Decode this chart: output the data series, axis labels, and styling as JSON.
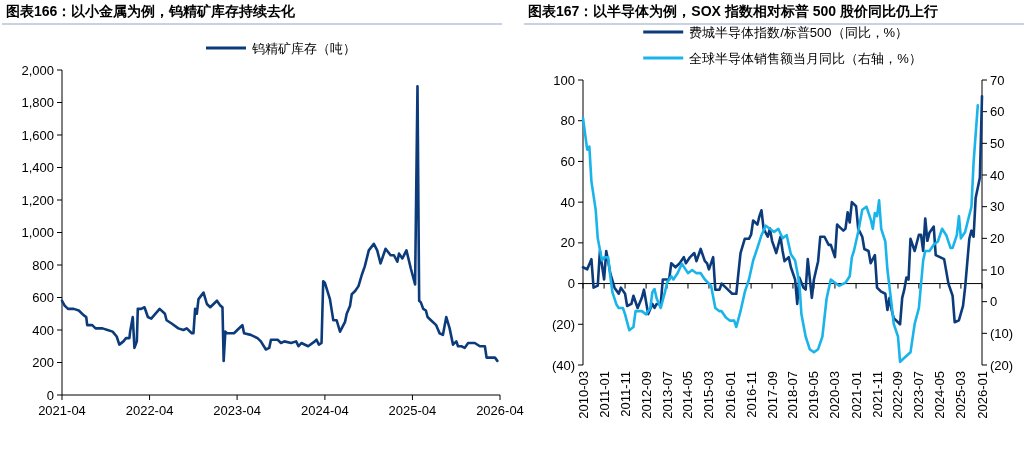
{
  "chart_data": [
    {
      "type": "line",
      "title": "图表166：以小金属为例，钨精矿库存持续去化",
      "legend": "top",
      "xlim": [
        "2021-04",
        "2026-04"
      ],
      "xticks": [
        "2021-04",
        "2022-04",
        "2023-04",
        "2024-04",
        "2025-04",
        "2026-04"
      ],
      "ylim": [
        0,
        2000
      ],
      "yticks": [
        0,
        200,
        400,
        600,
        800,
        {
          "value": 1000,
          "label": "1,000"
        },
        {
          "value": 1200,
          "label": "1,200"
        },
        {
          "value": 1400,
          "label": "1,400"
        },
        {
          "value": 1600,
          "label": "1,600"
        },
        {
          "value": 1800,
          "label": "1,800"
        },
        {
          "value": 2000,
          "label": "2,000"
        }
      ],
      "series": [
        {
          "name": "钨精矿库存（吨）",
          "color": "#0c3b7c",
          "x": [
            "2021-04-01",
            "2021-04-12",
            "2021-04-26",
            "2021-05-20",
            "2021-06-10",
            "2021-07-01",
            "2021-07-11",
            "2021-07-15",
            "2021-08-05",
            "2021-08-19",
            "2021-09-17",
            "2021-10-08",
            "2021-10-29",
            "2021-11-15",
            "2021-11-26",
            "2021-12-13",
            "2021-12-24",
            "2022-01-07",
            "2022-01-10",
            "2022-01-21",
            "2022-01-28",
            "2022-02-07",
            "2022-02-11",
            "2022-02-25",
            "2022-03-11",
            "2022-03-25",
            "2022-04-08",
            "2022-05-13",
            "2022-06-04",
            "2022-06-11",
            "2022-07-02",
            "2022-07-30",
            "2022-08-20",
            "2022-09-03",
            "2022-09-24",
            "2022-10-01",
            "2022-10-08",
            "2022-10-15",
            "2022-10-22",
            "2022-11-12",
            "2022-11-26",
            "2022-12-10",
            "2023-01-07",
            "2023-01-21",
            "2023-01-30",
            "2023-02-04",
            "2023-02-11",
            "2023-02-18",
            "2023-03-19",
            "2023-04-16",
            "2023-04-23",
            "2023-04-30",
            "2023-05-28",
            "2023-06-25",
            "2023-07-09",
            "2023-07-30",
            "2023-08-13",
            "2023-08-20",
            "2023-09-17",
            "2023-10-01",
            "2023-10-15",
            "2023-11-12",
            "2023-12-03",
            "2023-12-13",
            "2023-12-25",
            "2024-01-22",
            "2024-02-19",
            "2024-02-26",
            "2024-03-07",
            "2024-03-18",
            "2024-03-25",
            "2024-04-01",
            "2024-04-22",
            "2024-05-06",
            "2024-05-20",
            "2024-06-03",
            "2024-06-24",
            "2024-07-01",
            "2024-07-15",
            "2024-07-22",
            "2024-08-05",
            "2024-08-19",
            "2024-09-02",
            "2024-09-14",
            "2024-10-01",
            "2024-10-22",
            "2024-11-05",
            "2024-11-19",
            "2024-12-10",
            "2024-12-31",
            "2025-01-14",
            "2025-01-28",
            "2025-02-04",
            "2025-02-18",
            "2025-03-07",
            "2025-03-25",
            "2025-04-12",
            "2025-04-22",
            "2025-04-29",
            "2025-05-06",
            "2025-05-16",
            "2025-05-27",
            "2025-06-03",
            "2025-06-17",
            "2025-07-09",
            "2025-07-23",
            "2025-08-06",
            "2025-08-20",
            "2025-09-03",
            "2025-09-17",
            "2025-10-01",
            "2025-10-08",
            "2025-10-22",
            "2025-11-05",
            "2025-11-19",
            "2025-12-17",
            "2026-01-07",
            "2026-01-28",
            "2026-02-04",
            "2026-03-11",
            "2026-03-21"
          ],
          "values": [
            580,
            550,
            530,
            530,
            520,
            490,
            480,
            430,
            430,
            410,
            410,
            400,
            390,
            360,
            310,
            330,
            350,
            350,
            390,
            480,
            290,
            330,
            530,
            530,
            540,
            480,
            470,
            530,
            500,
            460,
            440,
            410,
            400,
            410,
            380,
            380,
            530,
            500,
            590,
            630,
            560,
            540,
            580,
            550,
            540,
            210,
            390,
            380,
            380,
            420,
            430,
            380,
            370,
            350,
            330,
            280,
            290,
            340,
            340,
            320,
            330,
            320,
            330,
            300,
            320,
            300,
            330,
            340,
            310,
            320,
            700,
            690,
            590,
            460,
            460,
            390,
            450,
            500,
            550,
            620,
            640,
            670,
            740,
            790,
            890,
            930,
            890,
            810,
            900,
            860,
            860,
            820,
            870,
            840,
            890,
            780,
            680,
            1900,
            580,
            570,
            530,
            520,
            480,
            460,
            430,
            380,
            370,
            480,
            410,
            310,
            330,
            300,
            300,
            290,
            320,
            320,
            300,
            300,
            230,
            230,
            210
          ]
        }
      ]
    },
    {
      "type": "line",
      "title": "图表167：以半导体为例，SOX 指数相对标普 500 股价同比仍上行",
      "legend": "top",
      "xlim": [
        "2010-03",
        "2026-01"
      ],
      "xticks": [
        "2010-03",
        "2011-01",
        "2011-11",
        "2012-09",
        "2013-07",
        "2014-05",
        "2015-03",
        "2016-01",
        "2016-11",
        "2017-09",
        "2018-07",
        "2019-05",
        "2020-03",
        "2021-01",
        "2021-11",
        "2022-09",
        "2023-07",
        "2024-05",
        "2025-03",
        "2026-01"
      ],
      "ylim": [
        -40,
        100
      ],
      "yticks": [
        {
          "value": -40,
          "label": "(40)"
        },
        {
          "value": -20,
          "label": "(20)"
        },
        0,
        20,
        40,
        60,
        80,
        100
      ],
      "y2lim": [
        -20,
        70
      ],
      "y2ticks": [
        {
          "value": -20,
          "label": "(20)"
        },
        {
          "value": -10,
          "label": "(10)"
        },
        0,
        10,
        20,
        30,
        40,
        50,
        60,
        70
      ],
      "series": [
        {
          "name": "费城半导体指数/标普500（同比，%）",
          "color": "#0c3b7c",
          "x": [
            "2010-03",
            "2010-05",
            "2010-07",
            "2010-08",
            "2010-10",
            "2010-11",
            "2011-01",
            "2011-02",
            "2011-03",
            "2011-04",
            "2011-06",
            "2011-08",
            "2011-09",
            "2011-11",
            "2011-12",
            "2012-02",
            "2012-03",
            "2012-05",
            "2012-07",
            "2012-08",
            "2012-10",
            "2012-12",
            "2013-01",
            "2013-02",
            "2013-04",
            "2013-05",
            "2013-06",
            "2013-08",
            "2013-09",
            "2013-11",
            "2014-01",
            "2014-03",
            "2014-04",
            "2014-06",
            "2014-08",
            "2014-09",
            "2014-11",
            "2015-01",
            "2015-02",
            "2015-03",
            "2015-05",
            "2015-06",
            "2015-08",
            "2015-09",
            "2015-11",
            "2015-12",
            "2016-02",
            "2016-04",
            "2016-05",
            "2016-06",
            "2016-08",
            "2016-10",
            "2016-11",
            "2016-12",
            "2017-02",
            "2017-03",
            "2017-04",
            "2017-05",
            "2017-07",
            "2017-08",
            "2017-09",
            "2017-11",
            "2018-01",
            "2018-02",
            "2018-03",
            "2018-05",
            "2018-06",
            "2018-08",
            "2018-09",
            "2018-10",
            "2018-12",
            "2019-01",
            "2019-02",
            "2019-04",
            "2019-05",
            "2019-07",
            "2019-08",
            "2019-10",
            "2019-12",
            "2020-01",
            "2020-03",
            "2020-04",
            "2020-05",
            "2020-07",
            "2020-08",
            "2020-09",
            "2020-10",
            "2020-11",
            "2021-01",
            "2021-02",
            "2021-04",
            "2021-05",
            "2021-07",
            "2021-08",
            "2021-10",
            "2021-11",
            "2022-01",
            "2022-03",
            "2022-04",
            "2022-05",
            "2022-06",
            "2022-07",
            "2022-10",
            "2022-11",
            "2022-12",
            "2023-01",
            "2023-02",
            "2023-03",
            "2023-05",
            "2023-07",
            "2023-08",
            "2023-09",
            "2023-10",
            "2023-11",
            "2023-12",
            "2024-02",
            "2024-03",
            "2024-05",
            "2024-07",
            "2024-09",
            "2024-11",
            "2024-12",
            "2025-02",
            "2025-04",
            "2025-05",
            "2025-07",
            "2025-08",
            "2025-09",
            "2025-10",
            "2025-12",
            "2026-01"
          ],
          "values": [
            8,
            7,
            12,
            -2,
            -1,
            16,
            2,
            16,
            11,
            5,
            -2,
            -5,
            -2,
            -5,
            -11,
            -10,
            -6,
            -12,
            -7,
            -3,
            -15,
            -10,
            -12,
            -10,
            -10,
            2,
            2,
            2,
            10,
            8,
            10,
            13,
            10,
            13,
            15,
            11,
            17,
            11,
            10,
            7,
            13,
            -3,
            -3,
            0,
            -2,
            -3,
            -5,
            -5,
            5,
            15,
            22,
            22,
            24,
            31,
            29,
            33,
            36,
            27,
            23,
            27,
            21,
            15,
            23,
            16,
            11,
            13,
            8,
            2,
            -10,
            3,
            -2,
            -3,
            12,
            -7,
            2,
            11,
            23,
            23,
            19,
            19,
            13,
            29,
            28,
            26,
            27,
            35,
            30,
            40,
            38,
            27,
            23,
            17,
            16,
            10,
            14,
            -2,
            -4,
            -5,
            -13,
            -7,
            -13,
            -17,
            -20,
            -7,
            -3,
            3,
            2,
            22,
            16,
            24,
            24,
            16,
            32,
            21,
            25,
            28,
            14,
            13,
            12,
            0,
            -6,
            -19,
            -18,
            -11,
            -2,
            22,
            26,
            23,
            42,
            52,
            92
          ]
        },
        {
          "name": "全球半导体销售额当月同比（右轴，%）",
          "color": "#1ab4ea",
          "axis": "y2",
          "x": [
            "2010-03",
            "2010-05",
            "2010-06",
            "2010-07",
            "2010-09",
            "2010-10",
            "2010-12",
            "2011-01",
            "2011-03",
            "2011-04",
            "2011-05",
            "2011-07",
            "2011-08",
            "2011-10",
            "2011-11",
            "2012-01",
            "2012-03",
            "2012-04",
            "2012-06",
            "2012-07",
            "2012-09",
            "2012-11",
            "2012-12",
            "2013-01",
            "2013-02",
            "2013-04",
            "2013-06",
            "2013-07",
            "2013-09",
            "2013-10",
            "2013-12",
            "2014-02",
            "2014-05",
            "2014-07",
            "2014-09",
            "2014-11",
            "2015-01",
            "2015-04",
            "2015-06",
            "2015-08",
            "2015-09",
            "2015-11",
            "2016-01",
            "2016-03",
            "2016-04",
            "2016-06",
            "2016-08",
            "2016-10",
            "2016-12",
            "2017-02",
            "2017-04",
            "2017-06",
            "2017-08",
            "2017-10",
            "2017-12",
            "2018-02",
            "2018-04",
            "2018-06",
            "2018-08",
            "2018-10",
            "2018-11",
            "2019-01",
            "2019-03",
            "2019-05",
            "2019-07",
            "2019-09",
            "2019-11",
            "2020-01",
            "2020-03",
            "2020-05",
            "2020-08",
            "2020-10",
            "2020-11",
            "2020-12",
            "2021-02",
            "2021-04",
            "2021-06",
            "2021-08",
            "2021-09",
            "2021-10",
            "2021-11",
            "2021-12",
            "2022-01",
            "2022-03",
            "2022-04",
            "2022-06",
            "2022-07",
            "2022-09",
            "2022-10",
            "2023-03",
            "2023-05",
            "2023-07",
            "2023-09",
            "2023-10",
            "2023-12",
            "2024-02",
            "2024-04",
            "2024-06",
            "2024-08",
            "2024-10",
            "2024-11",
            "2025-01",
            "2025-02",
            "2025-03",
            "2025-05",
            "2025-08",
            "2025-09",
            "2025-11"
          ],
          "values": [
            58,
            48,
            49,
            38,
            29,
            20,
            13,
            14,
            14,
            8,
            3,
            -1,
            -2,
            -2,
            -4,
            -9,
            -8,
            -3,
            -3,
            -3,
            -4,
            -2,
            3,
            4,
            1,
            -2,
            3,
            6,
            8,
            7,
            9,
            12,
            9,
            10,
            9,
            9,
            7,
            5,
            -2,
            -3,
            -3,
            -5,
            -6,
            -6,
            -8,
            -3,
            3,
            7,
            13,
            17,
            21,
            24,
            23,
            22,
            23,
            20,
            21,
            15,
            13,
            6,
            -4,
            -11,
            -15,
            -16,
            -15,
            -11,
            1,
            7,
            6,
            5,
            6,
            8,
            14,
            16,
            22,
            29,
            30,
            26,
            23,
            28,
            27,
            32,
            23,
            19,
            10,
            -1,
            -7,
            -11,
            -19,
            -16,
            -7,
            -2,
            13,
            16,
            16,
            18,
            19,
            23,
            21,
            17,
            17,
            21,
            27,
            20,
            22,
            30,
            44,
            62
          ]
        }
      ]
    }
  ]
}
